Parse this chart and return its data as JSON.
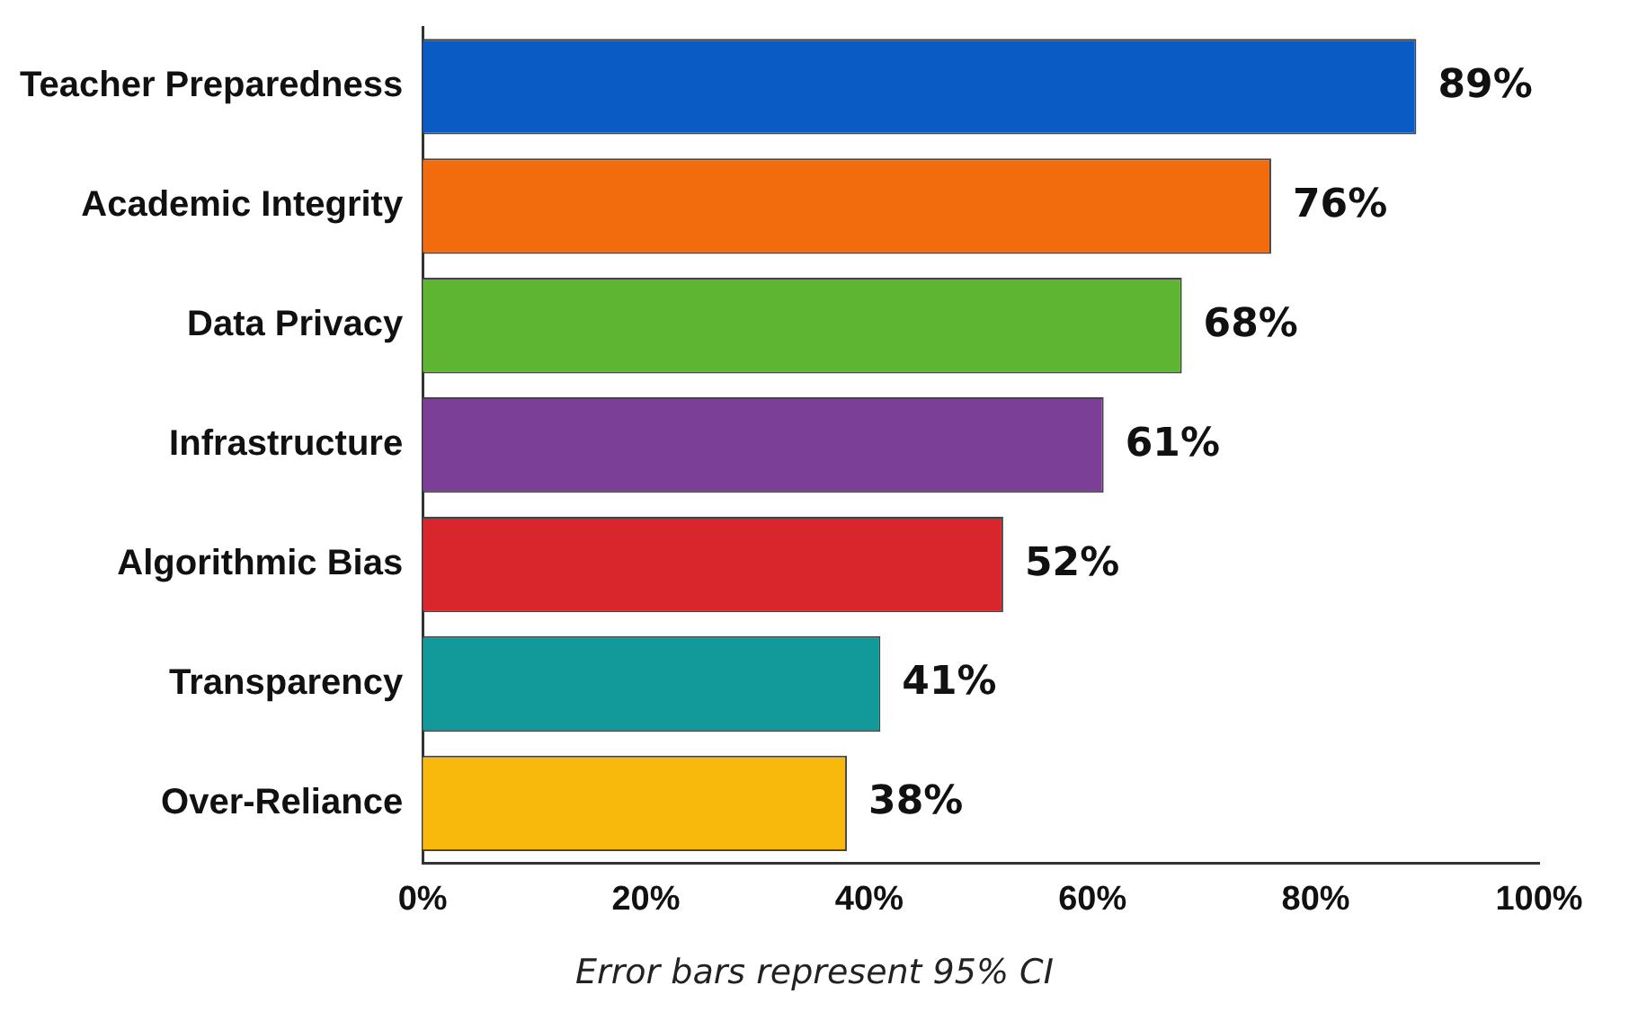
{
  "chart_data": {
    "type": "bar",
    "orientation": "horizontal",
    "categories": [
      "Teacher Preparedness",
      "Academic Integrity",
      "Data Privacy",
      "Infrastructure",
      "Algorithmic Bias",
      "Transparency",
      "Over-Reliance"
    ],
    "values": [
      89,
      76,
      68,
      61,
      52,
      41,
      38
    ],
    "colors": [
      "#0a5cc4",
      "#f26b0c",
      "#5db531",
      "#7b3f98",
      "#d9262c",
      "#12999a",
      "#f8b80c"
    ],
    "value_labels": [
      "89%",
      "76%",
      "68%",
      "61%",
      "52%",
      "41%",
      "38%"
    ],
    "xlim": [
      0,
      100
    ],
    "xticks": [
      {
        "value": 0,
        "label": "0%"
      },
      {
        "value": 20,
        "label": "20%"
      },
      {
        "value": 40,
        "label": "40%"
      },
      {
        "value": 60,
        "label": "60%"
      },
      {
        "value": 80,
        "label": "80%"
      },
      {
        "value": 100,
        "label": "100%"
      }
    ],
    "grid": false,
    "legend": false,
    "annotations": [
      "Error bars represent 95% CI"
    ]
  }
}
